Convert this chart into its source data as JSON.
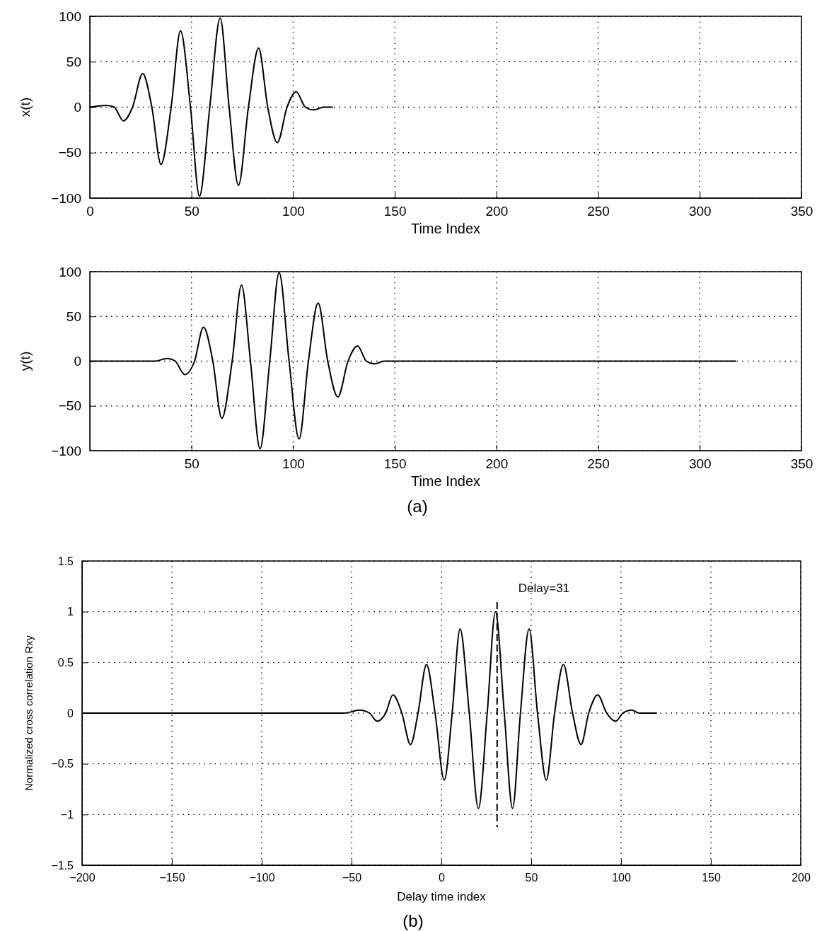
{
  "chart_data": [
    {
      "type": "line",
      "xlabel": "Time Index",
      "ylabel": "x(t)",
      "xlim": [
        0,
        350
      ],
      "xticks": [
        0,
        50,
        100,
        150,
        200,
        250,
        300,
        350
      ],
      "ylim": [
        -100,
        100
      ],
      "yticks": [
        -100,
        -50,
        0,
        50,
        100
      ],
      "grid": true,
      "line_style": "solid",
      "series": [
        {
          "color": "#000000",
          "x": [
            0,
            8,
            12,
            16.5,
            21,
            26,
            30.5,
            35,
            40,
            44.6,
            49.5,
            53.9,
            59,
            64.1,
            68.5,
            73.1,
            78,
            83,
            87.5,
            92.2,
            97,
            101.5,
            106,
            110.2,
            115,
            119.5
          ],
          "values": [
            0,
            2,
            0,
            -15,
            0,
            37,
            0,
            -63,
            0,
            84,
            0,
            -98,
            0,
            98,
            0,
            -86,
            0,
            65,
            0,
            -39,
            0,
            17,
            0,
            -3,
            0,
            0
          ]
        }
      ]
    },
    {
      "type": "line",
      "xlabel": "Time Index",
      "ylabel": "y(t)",
      "xlim": [
        0,
        350
      ],
      "xticks": [
        50,
        100,
        150,
        200,
        250,
        300,
        350
      ],
      "ylim": [
        -100,
        100
      ],
      "yticks": [
        -100,
        -50,
        0,
        50,
        100
      ],
      "grid": true,
      "line_style": "solid",
      "annotations": [
        "(a)"
      ],
      "series": [
        {
          "color": "#000000",
          "x": [
            0,
            32,
            38,
            42,
            46.7,
            51.5,
            55.9,
            60.5,
            64.9,
            70,
            74.6,
            79,
            83.7,
            88.5,
            93.1,
            98,
            102.9,
            107.5,
            112.3,
            117,
            122,
            127,
            131.7,
            136,
            140,
            145,
            318
          ],
          "values": [
            0,
            0,
            3,
            0,
            -15,
            0,
            38,
            0,
            -64,
            0,
            85,
            0,
            -98,
            0,
            99,
            0,
            -87,
            0,
            65,
            0,
            -40,
            0,
            17,
            0,
            -3,
            0,
            0
          ]
        }
      ]
    },
    {
      "type": "line",
      "xlabel": "Delay time index",
      "ylabel": "Normalized cross correlation Rxy",
      "xlim": [
        -200,
        200
      ],
      "xticks": [
        -200,
        -150,
        -100,
        -50,
        0,
        50,
        100,
        150,
        200
      ],
      "ylim": [
        -1.5,
        1.5
      ],
      "yticks": [
        -1.5,
        -1,
        -0.5,
        0,
        0.5,
        1,
        1.5
      ],
      "grid": true,
      "line_style": "solid",
      "annotations": [
        "(b)"
      ],
      "ref_lines": [
        {
          "axis": "x",
          "value": 31,
          "label": "Delay=31",
          "color": "#000000",
          "line_style": "dashed"
        }
      ],
      "series": [
        {
          "color": "#000000",
          "x": [
            -200,
            -54,
            -45.7,
            -40,
            -35.8,
            -31,
            -27,
            -22,
            -17.2,
            -13,
            -8.3,
            -3.5,
            1.6,
            6,
            10.4,
            15.5,
            20.6,
            25.5,
            30.1,
            35,
            39.6,
            44,
            48.8,
            53.5,
            58.4,
            63,
            67.9,
            73,
            77.7,
            82,
            87,
            92,
            97,
            101,
            106,
            110,
            120
          ],
          "values": [
            0,
            0,
            0.03,
            0,
            -0.08,
            0,
            0.18,
            0,
            -0.31,
            0,
            0.48,
            0,
            -0.66,
            0,
            0.83,
            0,
            -0.94,
            0,
            1.0,
            0,
            -0.94,
            0,
            0.83,
            0,
            -0.66,
            0,
            0.48,
            0,
            -0.31,
            0,
            0.18,
            0,
            -0.08,
            0,
            0.03,
            0,
            0
          ]
        }
      ]
    }
  ]
}
